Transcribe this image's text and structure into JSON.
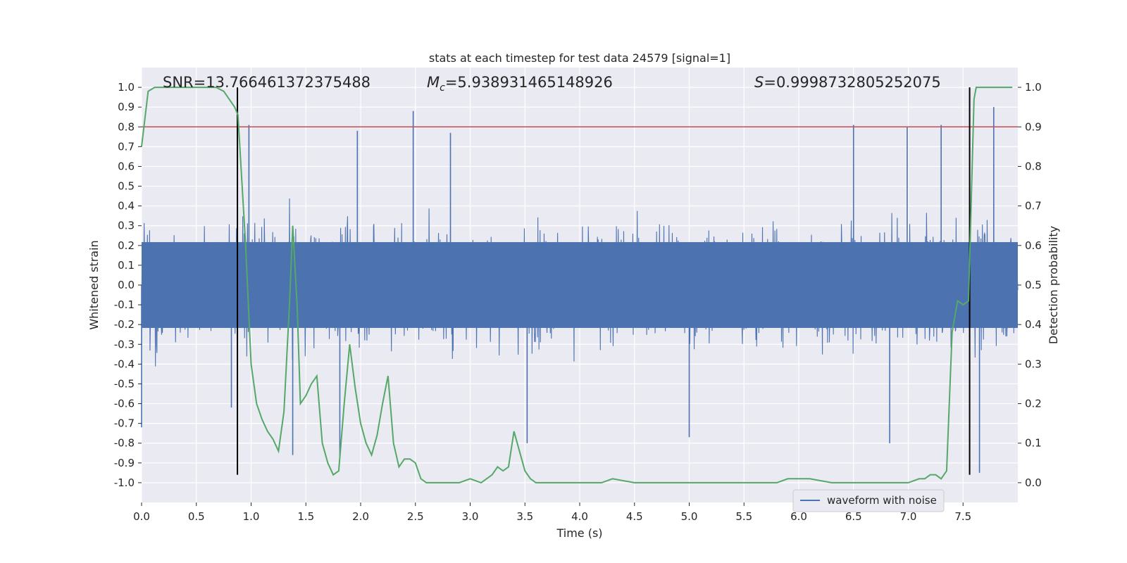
{
  "chart_data": {
    "type": "line",
    "title": "stats at each timestep for test data 24579 [signal=1]",
    "xlabel": "Time (s)",
    "ylabel_left": "Whitened strain",
    "ylabel_right": "Detection probability",
    "xlim": [
      0,
      8
    ],
    "ylim_left": [
      -1.1,
      1.1
    ],
    "ylim_right": [
      -0.05,
      1.05
    ],
    "x_ticks": [
      "0.0",
      "0.5",
      "1.0",
      "1.5",
      "2.0",
      "2.5",
      "3.0",
      "3.5",
      "4.0",
      "4.5",
      "5.0",
      "5.5",
      "6.0",
      "6.5",
      "7.0",
      "7.5"
    ],
    "x_tick_values": [
      0,
      0.5,
      1,
      1.5,
      2,
      2.5,
      3,
      3.5,
      4,
      4.5,
      5,
      5.5,
      6,
      6.5,
      7,
      7.5
    ],
    "y_left_ticks": [
      "1.0",
      "0.9",
      "0.8",
      "0.7",
      "0.6",
      "0.5",
      "0.4",
      "0.3",
      "0.2",
      "0.1",
      "0.0",
      "-0.1",
      "-0.2",
      "-0.3",
      "-0.4",
      "-0.5",
      "-0.6",
      "-0.7",
      "-0.8",
      "-0.9",
      "-1.0"
    ],
    "y_left_tick_values": [
      1,
      0.9,
      0.8,
      0.7,
      0.6,
      0.5,
      0.4,
      0.3,
      0.2,
      0.1,
      0,
      -0.1,
      -0.2,
      -0.3,
      -0.4,
      -0.5,
      -0.6,
      -0.7,
      -0.8,
      -0.9,
      -1
    ],
    "y_right_ticks": [
      "1.0",
      "0.9",
      "0.8",
      "0.7",
      "0.6",
      "0.5",
      "0.4",
      "0.3",
      "0.2",
      "0.1",
      "0.0"
    ],
    "y_right_tick_values": [
      1,
      0.9,
      0.8,
      0.7,
      0.6,
      0.5,
      0.4,
      0.3,
      0.2,
      0.1,
      0
    ],
    "annotations": {
      "snr": "SNR=13.766461372375488",
      "mc_symbol": "M",
      "mc_sub": "c",
      "mc_value": "=5.938931465148926",
      "s_symbol": "S",
      "s_value": "=0.9998732805252075"
    },
    "legend": {
      "label": "waveform with noise",
      "placement": "lower-right"
    },
    "threshold_line": {
      "value": 0.9,
      "axis": "right",
      "color": "#c44e52"
    },
    "vertical_lines": [
      0.875,
      7.56
    ],
    "waveform": {
      "name": "waveform with noise",
      "color": "#4c72b0",
      "envelope_typical": [
        -0.35,
        0.35
      ],
      "peaks_high": [
        [
          0.98,
          0.81
        ],
        [
          1.97,
          0.78
        ],
        [
          2.48,
          0.88
        ],
        [
          2.82,
          0.77
        ],
        [
          6.5,
          0.81
        ],
        [
          6.99,
          0.8
        ],
        [
          7.3,
          0.81
        ],
        [
          7.78,
          0.9
        ]
      ],
      "peaks_low": [
        [
          0.0,
          -0.72
        ],
        [
          0.82,
          -0.62
        ],
        [
          1.38,
          -0.86
        ],
        [
          1.81,
          -0.87
        ],
        [
          3.52,
          -0.8
        ],
        [
          5.0,
          -0.77
        ],
        [
          6.83,
          -0.8
        ],
        [
          7.65,
          -0.95
        ]
      ]
    },
    "series": [
      {
        "name": "detection probability",
        "color": "#55a868",
        "x": [
          0.0,
          0.06,
          0.12,
          0.25,
          0.4,
          0.55,
          0.68,
          0.75,
          0.8,
          0.85,
          0.88,
          0.95,
          1.0,
          1.05,
          1.1,
          1.15,
          1.2,
          1.25,
          1.3,
          1.35,
          1.38,
          1.42,
          1.45,
          1.5,
          1.55,
          1.6,
          1.65,
          1.7,
          1.75,
          1.8,
          1.85,
          1.9,
          1.95,
          2.0,
          2.05,
          2.1,
          2.15,
          2.2,
          2.25,
          2.3,
          2.35,
          2.4,
          2.45,
          2.5,
          2.55,
          2.6,
          2.7,
          2.9,
          3.0,
          3.1,
          3.15,
          3.2,
          3.25,
          3.3,
          3.35,
          3.4,
          3.45,
          3.5,
          3.55,
          3.6,
          3.7,
          3.8,
          4.0,
          4.2,
          4.3,
          4.5,
          4.7,
          4.9,
          5.0,
          5.1,
          5.2,
          5.4,
          5.6,
          5.8,
          5.9,
          6.0,
          6.1,
          6.3,
          6.5,
          6.7,
          6.9,
          7.0,
          7.1,
          7.15,
          7.2,
          7.25,
          7.3,
          7.35,
          7.4,
          7.45,
          7.5,
          7.55,
          7.6,
          7.62,
          7.65,
          7.7,
          7.8,
          7.95
        ],
        "y": [
          0.85,
          0.99,
          1.0,
          1.0,
          1.0,
          1.0,
          1.0,
          0.99,
          0.97,
          0.95,
          0.93,
          0.6,
          0.3,
          0.2,
          0.16,
          0.13,
          0.11,
          0.08,
          0.18,
          0.45,
          0.65,
          0.45,
          0.2,
          0.22,
          0.25,
          0.27,
          0.1,
          0.05,
          0.02,
          0.03,
          0.2,
          0.35,
          0.24,
          0.15,
          0.1,
          0.07,
          0.12,
          0.2,
          0.27,
          0.1,
          0.04,
          0.06,
          0.06,
          0.05,
          0.01,
          0.0,
          0.0,
          0.0,
          0.01,
          0.0,
          0.01,
          0.02,
          0.04,
          0.03,
          0.04,
          0.13,
          0.08,
          0.03,
          0.01,
          0.0,
          0.0,
          0.0,
          0.0,
          0.0,
          0.01,
          0.0,
          0.0,
          0.0,
          0.0,
          0.0,
          0.0,
          0.0,
          0.0,
          0.0,
          0.01,
          0.01,
          0.01,
          0.0,
          0.0,
          0.0,
          0.0,
          0.0,
          0.01,
          0.01,
          0.02,
          0.02,
          0.01,
          0.03,
          0.38,
          0.46,
          0.45,
          0.46,
          0.97,
          1.0,
          1.0,
          1.0,
          1.0,
          1.0
        ]
      }
    ]
  }
}
